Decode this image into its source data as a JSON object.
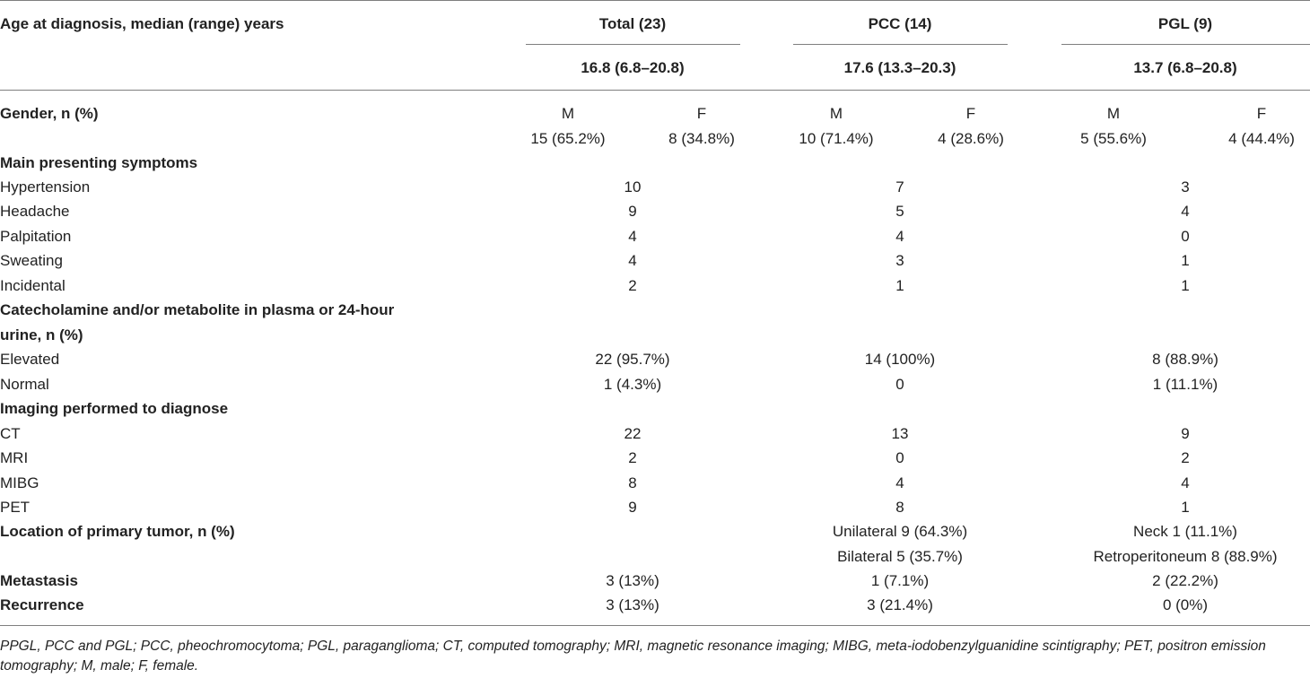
{
  "header": {
    "row_label": "Age at diagnosis, median (range) years",
    "groups": [
      {
        "label": "Total (23)",
        "age": "16.8 (6.8–20.8)"
      },
      {
        "label": "PCC (14)",
        "age": "17.6 (13.3–20.3)"
      },
      {
        "label": "PGL (9)",
        "age": "13.7 (6.8–20.8)"
      }
    ]
  },
  "gender": {
    "label": "Gender, n (%)",
    "cells": [
      {
        "sex": "M",
        "value": "15 (65.2%)"
      },
      {
        "sex": "F",
        "value": "8 (34.8%)"
      },
      {
        "sex": "M",
        "value": "10 (71.4%)"
      },
      {
        "sex": "F",
        "value": "4 (28.6%)"
      },
      {
        "sex": "M",
        "value": "5 (55.6%)"
      },
      {
        "sex": "F",
        "value": "4 (44.4%)"
      }
    ]
  },
  "symptoms": {
    "label": "Main presenting symptoms",
    "rows": [
      {
        "label": "Hypertension",
        "values": [
          "10",
          "7",
          "3"
        ]
      },
      {
        "label": "Headache",
        "values": [
          "9",
          "5",
          "4"
        ]
      },
      {
        "label": "Palpitation",
        "values": [
          "4",
          "4",
          "0"
        ]
      },
      {
        "label": "Sweating",
        "values": [
          "4",
          "3",
          "1"
        ]
      },
      {
        "label": "Incidental",
        "values": [
          "2",
          "1",
          "1"
        ]
      }
    ]
  },
  "catecholamine": {
    "label_line1": "Catecholamine and/or metabolite in plasma or 24-hour",
    "label_line2": "urine, n (%)",
    "rows": [
      {
        "label": "Elevated",
        "values": [
          "22 (95.7%)",
          "14 (100%)",
          "8 (88.9%)"
        ]
      },
      {
        "label": "Normal",
        "values": [
          "1 (4.3%)",
          "0",
          "1 (11.1%)"
        ]
      }
    ]
  },
  "imaging": {
    "label": "Imaging performed to diagnose",
    "rows": [
      {
        "label": "CT",
        "values": [
          "22",
          "13",
          "9"
        ]
      },
      {
        "label": "MRI",
        "values": [
          "2",
          "0",
          "2"
        ]
      },
      {
        "label": "MIBG",
        "values": [
          "8",
          "4",
          "4"
        ]
      },
      {
        "label": "PET",
        "values": [
          "9",
          "8",
          "1"
        ]
      }
    ]
  },
  "location": {
    "label": "Location of primary tumor, n (%)",
    "pcc": [
      "Unilateral 9 (64.3%)",
      "Bilateral 5 (35.7%)"
    ],
    "pgl": [
      "Neck 1 (11.1%)",
      "Retroperitoneum 8 (88.9%)"
    ]
  },
  "outcomes": [
    {
      "label": "Metastasis",
      "values": [
        "3 (13%)",
        "1 (7.1%)",
        "2 (22.2%)"
      ]
    },
    {
      "label": "Recurrence",
      "values": [
        "3 (13%)",
        "3 (21.4%)",
        "0 (0%)"
      ]
    }
  ],
  "footnote": "PPGL, PCC and PGL; PCC, pheochromocytoma; PGL, paraganglioma; CT, computed tomography; MRI, magnetic resonance imaging; MIBG, meta-iodobenzylguanidine scintigraphy; PET, positron emission tomography; M, male; F, female."
}
